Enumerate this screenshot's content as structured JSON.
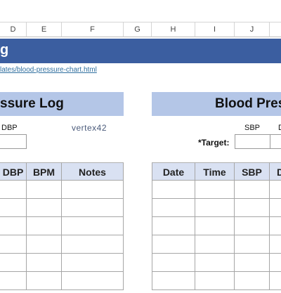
{
  "column_headers": [
    "D",
    "E",
    "F",
    "G",
    "H",
    "I",
    "J"
  ],
  "banner": {
    "title": "g"
  },
  "link": "lates/blood-pressure-chart.html",
  "left_section": {
    "title": "ssure Log",
    "field_label": "DBP",
    "logo": "vertex42",
    "table_headers": [
      "DBP",
      "BPM",
      "Notes"
    ]
  },
  "right_section": {
    "title": "Blood Pres",
    "field_labels": [
      "SBP",
      "D"
    ],
    "target_label": "*Target:",
    "table_headers": [
      "Date",
      "Time",
      "SBP",
      "D"
    ]
  }
}
